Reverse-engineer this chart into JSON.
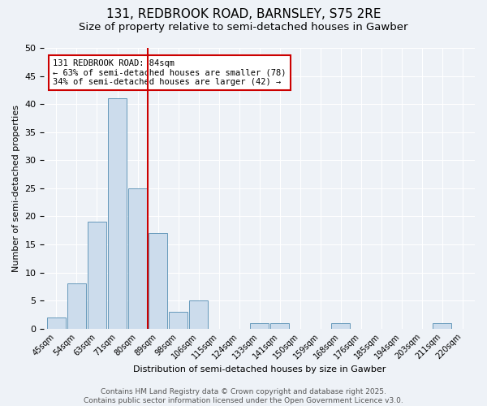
{
  "title_line1": "131, REDBROOK ROAD, BARNSLEY, S75 2RE",
  "title_line2": "Size of property relative to semi-detached houses in Gawber",
  "xlabel": "Distribution of semi-detached houses by size in Gawber",
  "ylabel": "Number of semi-detached properties",
  "bin_labels": [
    "45sqm",
    "54sqm",
    "63sqm",
    "71sqm",
    "80sqm",
    "89sqm",
    "98sqm",
    "106sqm",
    "115sqm",
    "124sqm",
    "133sqm",
    "141sqm",
    "150sqm",
    "159sqm",
    "168sqm",
    "176sqm",
    "185sqm",
    "194sqm",
    "203sqm",
    "211sqm",
    "220sqm"
  ],
  "bar_heights": [
    2,
    8,
    19,
    41,
    25,
    17,
    3,
    5,
    0,
    0,
    1,
    1,
    0,
    0,
    1,
    0,
    0,
    0,
    0,
    1,
    0
  ],
  "bar_color": "#ccdcec",
  "bar_edge_color": "#6699bb",
  "property_size_bin": 4,
  "vline_color": "#cc0000",
  "annotation_line1": "131 REDBROOK ROAD: 84sqm",
  "annotation_line2": "← 63% of semi-detached houses are smaller (78)",
  "annotation_line3": "34% of semi-detached houses are larger (42) →",
  "annotation_box_color": "white",
  "annotation_box_edge_color": "#cc0000",
  "ylim": [
    0,
    50
  ],
  "yticks": [
    0,
    5,
    10,
    15,
    20,
    25,
    30,
    35,
    40,
    45,
    50
  ],
  "background_color": "#eef2f7",
  "grid_color": "white",
  "footer_text": "Contains HM Land Registry data © Crown copyright and database right 2025.\nContains public sector information licensed under the Open Government Licence v3.0.",
  "title_fontsize": 11,
  "subtitle_fontsize": 9.5,
  "annotation_fontsize": 7.5,
  "footer_fontsize": 6.5,
  "ylabel_fontsize": 8,
  "xlabel_fontsize": 8
}
